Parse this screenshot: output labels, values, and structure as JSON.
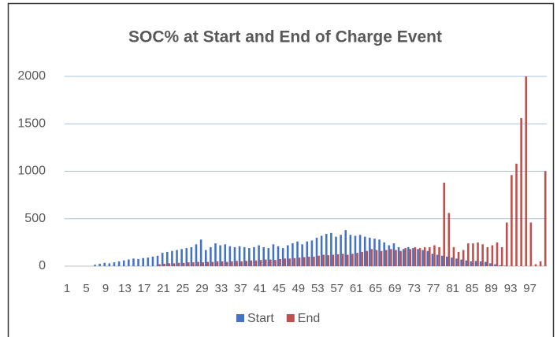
{
  "chart_data": {
    "type": "bar",
    "title": "SOC% at Start and End of Charge Event",
    "categories": [
      "1",
      null,
      null,
      null,
      "5",
      null,
      null,
      null,
      "9",
      null,
      null,
      null,
      "13",
      null,
      null,
      null,
      "17",
      null,
      null,
      null,
      "21",
      null,
      null,
      null,
      "25",
      null,
      null,
      null,
      "29",
      null,
      null,
      null,
      "33",
      null,
      null,
      null,
      "37",
      null,
      null,
      null,
      "41",
      null,
      null,
      null,
      "45",
      null,
      null,
      null,
      "49",
      null,
      null,
      null,
      "53",
      null,
      null,
      null,
      "57",
      null,
      null,
      null,
      "61",
      null,
      null,
      null,
      "65",
      null,
      null,
      null,
      "69",
      null,
      null,
      null,
      "73",
      null,
      null,
      null,
      "77",
      null,
      null,
      null,
      "81",
      null,
      null,
      null,
      "85",
      null,
      null,
      null,
      "89",
      null,
      null,
      null,
      "93",
      null,
      null,
      null,
      "97",
      null,
      null,
      null
    ],
    "series": [
      {
        "name": "Start",
        "color": "#4472c4",
        "values": [
          0,
          0,
          0,
          0,
          0,
          0,
          15,
          25,
          35,
          30,
          40,
          50,
          60,
          70,
          80,
          75,
          85,
          90,
          100,
          110,
          140,
          150,
          160,
          170,
          180,
          190,
          200,
          230,
          280,
          170,
          200,
          240,
          220,
          230,
          210,
          200,
          210,
          200,
          190,
          200,
          220,
          200,
          190,
          230,
          210,
          190,
          220,
          240,
          260,
          230,
          260,
          270,
          300,
          320,
          340,
          350,
          310,
          330,
          380,
          330,
          320,
          330,
          310,
          300,
          290,
          280,
          250,
          220,
          240,
          200,
          180,
          200,
          190,
          180,
          170,
          160,
          130,
          120,
          110,
          100,
          90,
          80,
          70,
          60,
          50,
          55,
          50,
          45,
          30,
          20,
          10,
          5,
          0,
          0,
          0,
          0,
          0,
          0,
          0,
          0
        ]
      },
      {
        "name": "End",
        "color": "#c0504d",
        "values": [
          0,
          0,
          0,
          0,
          0,
          0,
          0,
          0,
          0,
          0,
          0,
          0,
          0,
          0,
          0,
          0,
          0,
          0,
          0,
          20,
          25,
          30,
          30,
          35,
          35,
          40,
          40,
          45,
          40,
          45,
          45,
          50,
          50,
          45,
          50,
          55,
          50,
          55,
          60,
          60,
          65,
          70,
          70,
          65,
          75,
          80,
          80,
          85,
          90,
          95,
          100,
          100,
          110,
          120,
          115,
          120,
          125,
          130,
          120,
          130,
          140,
          150,
          160,
          180,
          170,
          160,
          170,
          180,
          170,
          160,
          190,
          180,
          200,
          190,
          200,
          200,
          220,
          200,
          880,
          560,
          200,
          150,
          170,
          240,
          240,
          250,
          230,
          200,
          220,
          250,
          200,
          460,
          960,
          1080,
          1560,
          2000,
          460,
          20,
          50,
          1000
        ]
      }
    ],
    "ylim": [
      0,
      2000
    ],
    "yticks": [
      0,
      500,
      1000,
      1500,
      2000
    ],
    "grid": true,
    "legend": "bottom"
  }
}
